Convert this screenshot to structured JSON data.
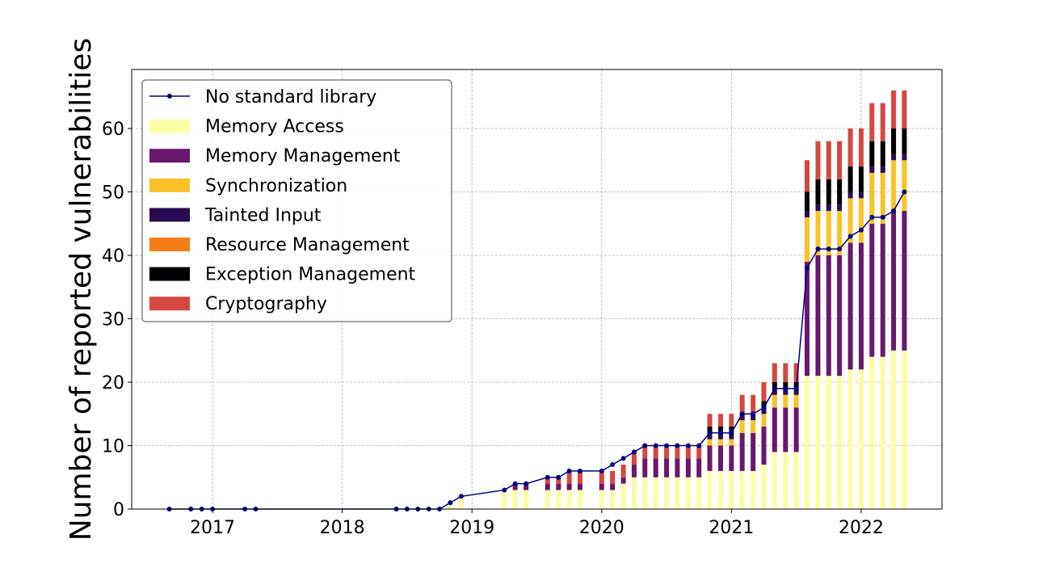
{
  "chart_data": {
    "type": "stacked-bar-line",
    "ylabel": "Number of reported vulnerabilities",
    "x": [
      2016.667,
      2016.833,
      2016.917,
      2017.0,
      2017.25,
      2017.333,
      2018.417,
      2018.5,
      2018.583,
      2018.667,
      2018.75,
      2018.833,
      2018.917,
      2019.25,
      2019.333,
      2019.417,
      2019.583,
      2019.667,
      2019.75,
      2019.833,
      2020.0,
      2020.083,
      2020.167,
      2020.25,
      2020.333,
      2020.417,
      2020.5,
      2020.583,
      2020.667,
      2020.75,
      2020.833,
      2020.917,
      2021.0,
      2021.083,
      2021.167,
      2021.25,
      2021.333,
      2021.417,
      2021.5,
      2021.583,
      2021.667,
      2021.75,
      2021.833,
      2021.917,
      2022.0,
      2022.083,
      2022.167,
      2022.25,
      2022.333
    ],
    "line": {
      "name": "No standard library",
      "color": "#000080",
      "values": [
        0,
        0,
        0,
        0,
        0,
        0,
        0,
        0,
        0,
        0,
        0,
        1,
        2,
        3,
        4,
        4,
        5,
        5,
        6,
        6,
        6,
        7,
        8,
        9,
        10,
        10,
        10,
        10,
        10,
        10,
        12,
        12,
        12,
        15,
        15,
        16,
        19,
        19,
        19,
        38,
        41,
        41,
        41,
        43,
        44,
        46,
        46,
        47,
        50
      ]
    },
    "series": [
      {
        "name": "Memory Access",
        "color": "#fcffa4",
        "values": [
          0,
          0,
          0,
          0,
          0,
          0,
          0,
          0,
          0,
          0,
          0,
          1,
          2,
          3,
          3,
          3,
          3,
          3,
          3,
          3,
          3,
          3,
          4,
          5,
          5,
          5,
          5,
          5,
          5,
          5,
          6,
          6,
          6,
          6,
          6,
          7,
          9,
          9,
          9,
          21,
          21,
          21,
          21,
          22,
          22,
          24,
          24,
          25,
          25
        ]
      },
      {
        "name": "Memory Management",
        "color": "#6a176e",
        "values": [
          0,
          0,
          0,
          0,
          0,
          0,
          0,
          0,
          0,
          0,
          0,
          0,
          0,
          0,
          1,
          1,
          1,
          1,
          1,
          1,
          1,
          1,
          1,
          2,
          3,
          3,
          3,
          3,
          3,
          3,
          4,
          4,
          4,
          6,
          6,
          6,
          7,
          7,
          7,
          18,
          19,
          19,
          19,
          20,
          20,
          21,
          21,
          22,
          22
        ]
      },
      {
        "name": "Synchronization",
        "color": "#fbc127",
        "values": [
          0,
          0,
          0,
          0,
          0,
          0,
          0,
          0,
          0,
          0,
          0,
          0,
          0,
          0,
          0,
          0,
          0,
          0,
          0,
          0,
          0,
          0,
          0,
          0,
          0,
          0,
          0,
          0,
          0,
          0,
          1,
          1,
          1,
          2,
          2,
          2,
          2,
          2,
          2,
          7,
          7,
          7,
          7,
          7,
          7,
          8,
          8,
          8,
          8
        ]
      },
      {
        "name": "Tainted Input",
        "color": "#280b54",
        "values": [
          0,
          0,
          0,
          0,
          0,
          0,
          0,
          0,
          0,
          0,
          0,
          0,
          0,
          0,
          0,
          0,
          0,
          0,
          0,
          0,
          0,
          0,
          0,
          0,
          0,
          0,
          0,
          0,
          0,
          0,
          1,
          1,
          1,
          1,
          1,
          1,
          1,
          1,
          1,
          1,
          1,
          1,
          1,
          1,
          1,
          1,
          1,
          1,
          1
        ]
      },
      {
        "name": "Resource Management",
        "color": "#f57d15",
        "values": [
          0,
          0,
          0,
          0,
          0,
          0,
          0,
          0,
          0,
          0,
          0,
          0,
          0,
          0,
          0,
          0,
          0,
          0,
          0,
          0,
          0,
          0,
          0,
          0,
          0,
          0,
          0,
          0,
          0,
          0,
          0,
          0,
          0,
          0,
          0,
          0,
          0,
          0,
          0,
          0,
          0,
          0,
          0,
          0,
          0,
          0,
          0,
          0,
          0
        ]
      },
      {
        "name": "Exception Management",
        "color": "#000004",
        "values": [
          0,
          0,
          0,
          0,
          0,
          0,
          0,
          0,
          0,
          0,
          0,
          0,
          0,
          0,
          0,
          0,
          0,
          0,
          0,
          0,
          0,
          0,
          0,
          0,
          0,
          0,
          0,
          0,
          0,
          0,
          1,
          1,
          1,
          0,
          0,
          1,
          1,
          1,
          1,
          3,
          4,
          4,
          4,
          4,
          4,
          4,
          4,
          4,
          4
        ]
      },
      {
        "name": "Cryptography",
        "color": "#d44842",
        "values": [
          0,
          0,
          0,
          0,
          0,
          0,
          0,
          0,
          0,
          0,
          0,
          0,
          0,
          0,
          0,
          0,
          1,
          1,
          2,
          2,
          2,
          2,
          2,
          2,
          2,
          2,
          2,
          2,
          2,
          2,
          2,
          2,
          2,
          3,
          3,
          3,
          3,
          3,
          3,
          5,
          6,
          6,
          6,
          6,
          6,
          6,
          6,
          6,
          6
        ]
      }
    ],
    "xlim": [
      2016.377,
      2022.623
    ],
    "xticks": [
      2017,
      2018,
      2019,
      2020,
      2021,
      2022
    ],
    "ylim": [
      0,
      69.3
    ],
    "yticks": [
      0,
      10,
      20,
      30,
      40,
      50,
      60
    ],
    "grid": true,
    "legend": "upper left"
  }
}
